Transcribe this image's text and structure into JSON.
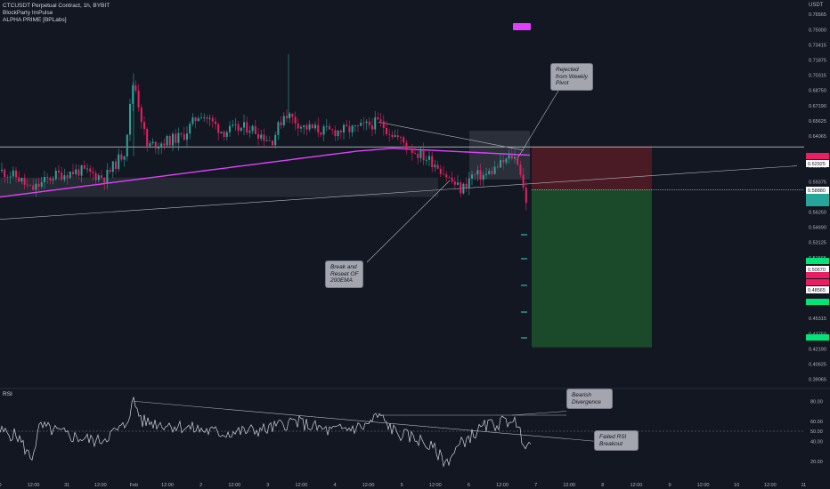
{
  "legend": {
    "symbol": "CTCUSDT Perpetual Contract, 1h, BYBIT",
    "indicator1": "BlockParty ImPulse",
    "indicator2": "ALPHA PRIME [BPLabs]"
  },
  "currency": "USDT",
  "rsi_label": "RSI",
  "annotations": {
    "rejected": [
      "Rejected",
      "from Weekly",
      "Pivot"
    ],
    "break": [
      "Break and",
      "Reseet OF",
      "200EMA"
    ],
    "bearish": [
      "Bearish",
      "Divergence"
    ],
    "failed": [
      "Failed RSI",
      "Breakout"
    ]
  },
  "colors": {
    "background": "#131722",
    "bull": "#26a69a",
    "bear": "#e91e63",
    "ema": "#e040fb",
    "stop_zone": "#4a1a25",
    "target_zone": "#1b4a2a"
  },
  "chart_data": [
    {
      "type": "candlestick",
      "y_axis": {
        "ticks": [
          0.76565,
          0.75,
          0.73415,
          0.71875,
          0.70315,
          0.6875,
          0.6719,
          0.65625,
          0.64065,
          0.6094,
          0.59375,
          0.5625,
          0.5469,
          0.53125,
          0.51565,
          0.5,
          0.48435,
          0.46875,
          0.45315,
          0.4375,
          0.4219,
          0.40625,
          0.39065
        ],
        "ylim": [
          0.3875,
          0.775
        ]
      },
      "x_axis": {
        "tick_labels": [
          "0",
          "12:00",
          "31",
          "12:00",
          "Feb",
          "12:00",
          "2",
          "12:00",
          "3",
          "12:00",
          "4",
          "12:00",
          "5",
          "12:00",
          "6",
          "12:00",
          "7",
          "12:00",
          "8",
          "12:00",
          "9",
          "12:00",
          "10",
          "12:00",
          "11"
        ]
      },
      "price_labels": [
        {
          "value": "0.62925",
          "style": "white"
        },
        {
          "value": "0.58880",
          "style": "white"
        },
        {
          "value": "0.50670",
          "style": "white"
        },
        {
          "value": "0.48565",
          "style": "white"
        }
      ],
      "key_levels": {
        "weekly_pivot": 0.6295,
        "entry": 0.5855,
        "stop": 0.63,
        "target": 0.4235
      },
      "description": "Hourly candles from Jan 30 to Feb 7; price rallies from about 0.58 to highs near 0.72 on Feb 1-3, then drifts down, tests the 200 EMA (about 0.61) and the weekly pivot (0.629) and is rejected back toward 0.57."
    },
    {
      "type": "line",
      "name": "RSI",
      "y_ticks": [
        80,
        60,
        50,
        40,
        20
      ],
      "ylim": [
        10,
        90
      ]
    }
  ]
}
